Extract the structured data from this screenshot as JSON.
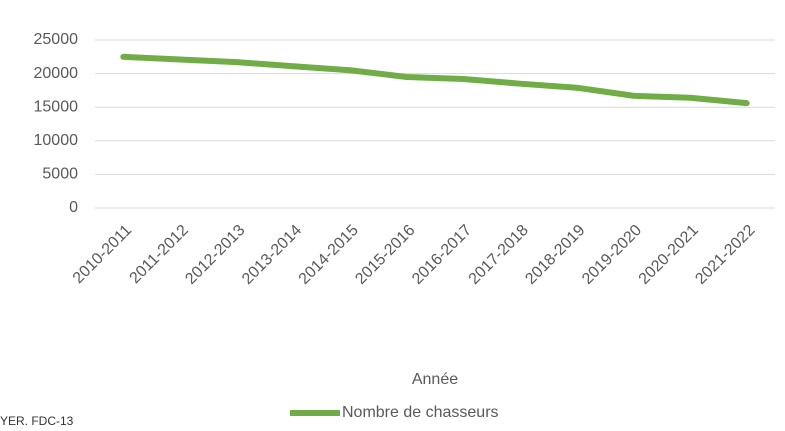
{
  "chart_data": {
    "type": "line",
    "categories": [
      "2010-2011",
      "2011-2012",
      "2012-2013",
      "2013-2014",
      "2014-2015",
      "2015-2016",
      "2016-2017",
      "2017-2018",
      "2018-2019",
      "2019-2020",
      "2020-2021",
      "2021-2022"
    ],
    "series": [
      {
        "name": "Nombre de chasseurs",
        "color": "#70ad47",
        "values": [
          22500,
          22100,
          21700,
          21100,
          20500,
          19500,
          19200,
          18500,
          17900,
          16700,
          16400,
          15600
        ]
      }
    ],
    "ylim": [
      0,
      25000
    ],
    "yticks": [
      0,
      5000,
      10000,
      15000,
      20000,
      25000
    ],
    "grid": true,
    "x_label": "Année",
    "legend": "bottom",
    "source": "YER. FDC-13"
  }
}
